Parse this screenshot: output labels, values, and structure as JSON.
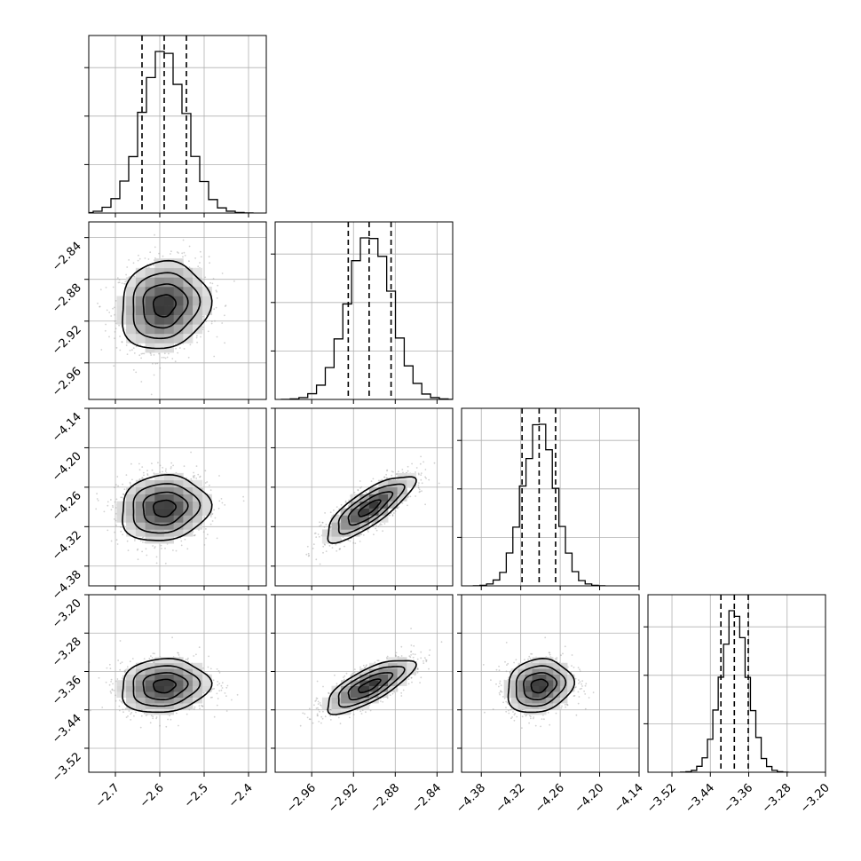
{
  "chart_data": {
    "type": "corner",
    "parameters": [
      {
        "range": [
          -2.76,
          -2.36
        ],
        "ticks": [
          -2.7,
          -2.6,
          -2.5,
          -2.4
        ],
        "tick_labels": [
          "−2.7",
          "−2.6",
          "−2.5",
          "−2.4"
        ],
        "mean": -2.59,
        "std": 0.05,
        "quantiles": [
          -2.64,
          -2.59,
          -2.54
        ]
      },
      {
        "range": [
          -2.995,
          -2.825
        ],
        "ticks": [
          -2.96,
          -2.92,
          -2.88,
          -2.84
        ],
        "tick_labels": [
          "−2.96",
          "−2.92",
          "−2.88",
          "−2.84"
        ],
        "mean": -2.905,
        "std": 0.021,
        "quantiles": [
          -2.925,
          -2.905,
          -2.884
        ]
      },
      {
        "range": [
          -4.41,
          -4.14
        ],
        "ticks": [
          -4.38,
          -4.32,
          -4.26,
          -4.2,
          -4.14
        ],
        "tick_labels": [
          "−4.38",
          "−4.32",
          "−4.26",
          "−4.20",
          "−4.14"
        ],
        "mean": -4.292,
        "std": 0.025,
        "quantiles": [
          -4.318,
          -4.292,
          -4.267
        ]
      },
      {
        "range": [
          -3.57,
          -3.2
        ],
        "ticks": [
          -3.52,
          -3.44,
          -3.36,
          -3.28,
          -3.2
        ],
        "tick_labels": [
          "−3.52",
          "−3.44",
          "−3.36",
          "−3.28",
          "−3.20"
        ],
        "mean": -3.39,
        "std": 0.028,
        "quantiles": [
          -3.418,
          -3.39,
          -3.361
        ]
      }
    ],
    "correlations": [
      [
        1,
        0.1,
        0.1,
        0.1
      ],
      [
        0.1,
        1,
        0.8,
        0.75
      ],
      [
        0.1,
        0.8,
        1,
        0.15
      ],
      [
        0.1,
        0.75,
        0.15,
        1
      ]
    ],
    "histogram_bins": 20,
    "contour_levels_sigma": [
      0.5,
      1.0,
      1.5,
      2.0
    ],
    "grid": true,
    "colors": {
      "line": "#000000",
      "points": "#9a9a9a",
      "density": "#4a4a4a"
    }
  }
}
